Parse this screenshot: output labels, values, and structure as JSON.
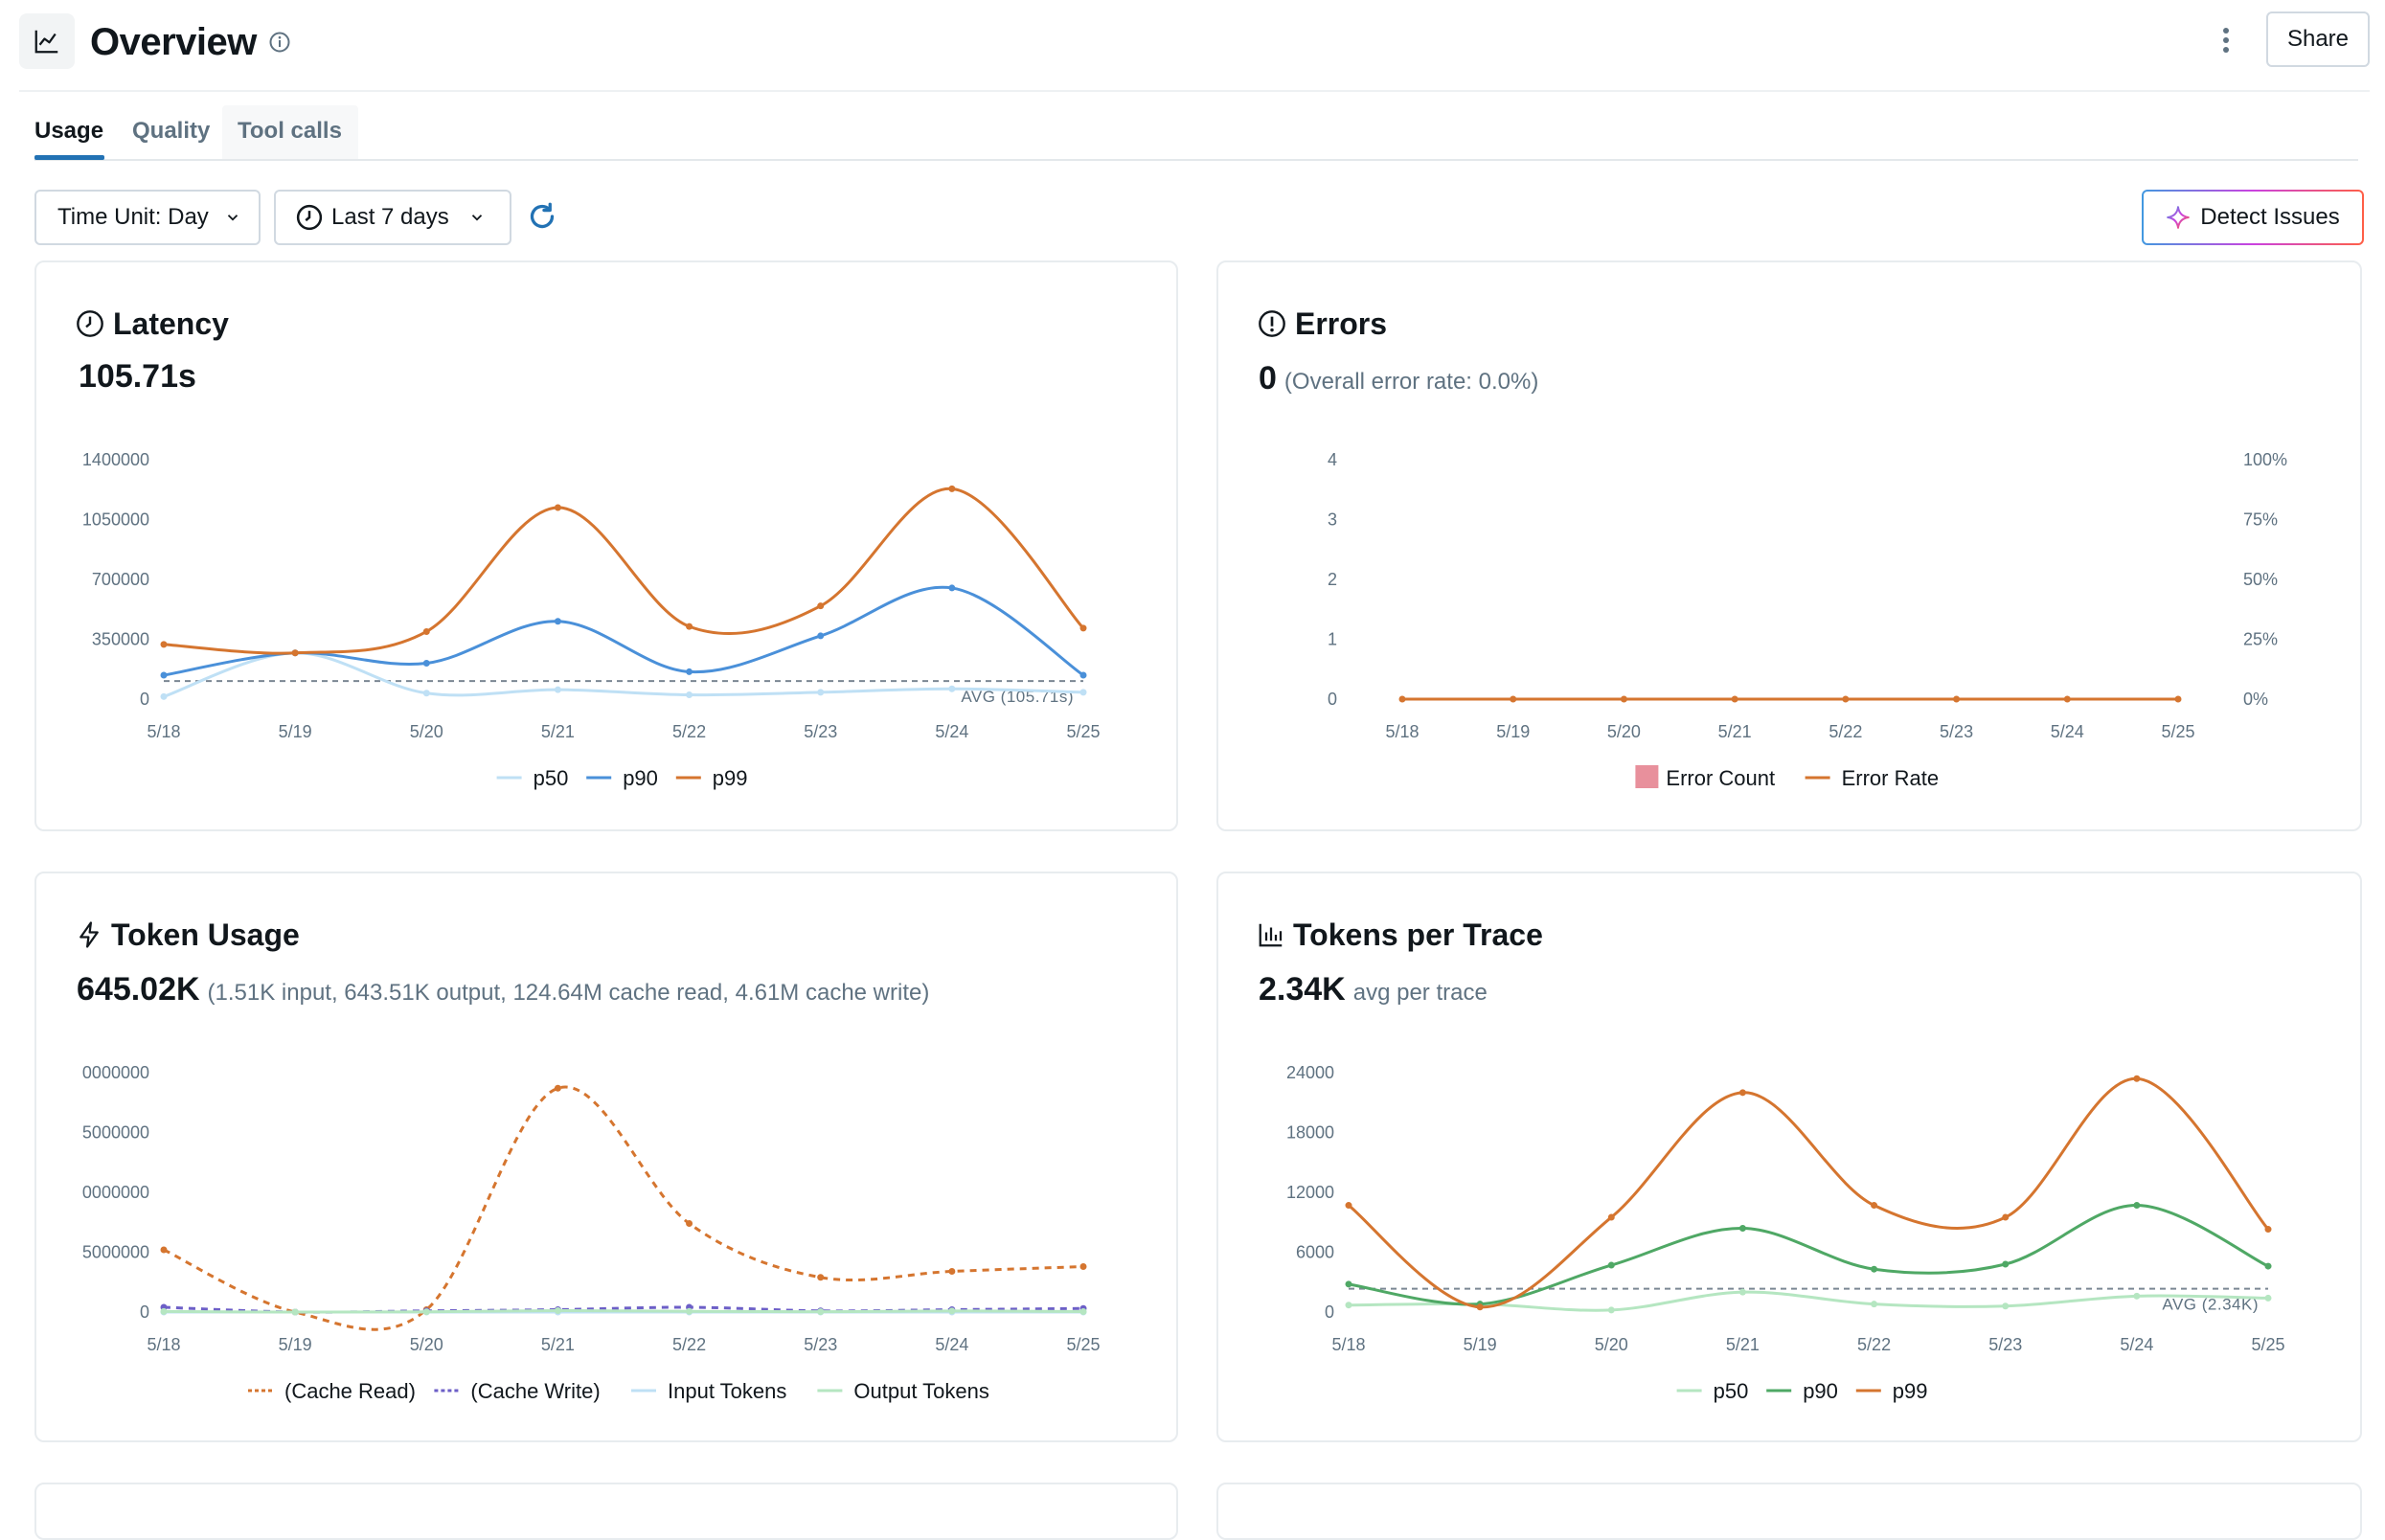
{
  "header": {
    "title": "Overview",
    "share_label": "Share"
  },
  "tabs": [
    {
      "label": "Usage",
      "active": true
    },
    {
      "label": "Quality",
      "active": false
    },
    {
      "label": "Tool calls",
      "active": false
    }
  ],
  "toolbar": {
    "time_unit_label": "Time Unit: Day",
    "range_label": "Last 7 days",
    "detect_label": "Detect Issues"
  },
  "colors": {
    "accent": "#2272b4",
    "p50": "#bfe0f5",
    "p90": "#4a90d9",
    "p99": "#d5752f",
    "tp_p50": "#b5e6c1",
    "tp_p90": "#4fa865",
    "tp_p99": "#d5752f",
    "cache_write": "#6c5fc7",
    "error_count": "#e8909c"
  },
  "cards": {
    "latency": {
      "title": "Latency",
      "value": "105.71s",
      "avg_label": "AVG (105.71s)"
    },
    "errors": {
      "title": "Errors",
      "value": "0",
      "detail": "(Overall error rate: 0.0%)"
    },
    "tokens": {
      "title": "Token Usage",
      "value": "645.02K",
      "detail": "(1.51K input, 643.51K output, 124.64M cache read, 4.61M cache write)"
    },
    "per_trace": {
      "title": "Tokens per Trace",
      "value": "2.34K",
      "detail": "avg per trace",
      "avg_label": "AVG (2.34K)"
    }
  },
  "chart_data": [
    {
      "id": "latency",
      "type": "line",
      "x": [
        "5/18",
        "5/19",
        "5/20",
        "5/21",
        "5/22",
        "5/23",
        "5/24",
        "5/25"
      ],
      "y_ticks": [
        "1400000",
        "1050000",
        "700000",
        "350000",
        "0"
      ],
      "ylim": [
        0,
        1400000
      ],
      "avg": 105710,
      "series": [
        {
          "name": "p50",
          "values": [
            15000,
            270000,
            35000,
            55000,
            25000,
            40000,
            60000,
            40000
          ]
        },
        {
          "name": "p90",
          "values": [
            140000,
            270000,
            210000,
            455000,
            160000,
            370000,
            650000,
            140000
          ]
        },
        {
          "name": "p99",
          "values": [
            320000,
            270000,
            395000,
            1120000,
            425000,
            545000,
            1230000,
            415000
          ]
        }
      ]
    },
    {
      "id": "errors",
      "type": "line",
      "x": [
        "5/18",
        "5/19",
        "5/20",
        "5/21",
        "5/22",
        "5/23",
        "5/24",
        "5/25"
      ],
      "y_ticks": [
        "4",
        "3",
        "2",
        "1",
        "0"
      ],
      "y2_ticks": [
        "100%",
        "75%",
        "50%",
        "25%",
        "0%"
      ],
      "ylim": [
        0,
        4
      ],
      "series": [
        {
          "name": "Error Count",
          "type": "bar",
          "values": [
            0,
            0,
            0,
            0,
            0,
            0,
            0,
            0
          ]
        },
        {
          "name": "Error Rate",
          "values": [
            0,
            0,
            0,
            0,
            0,
            0,
            0,
            0
          ]
        }
      ]
    },
    {
      "id": "tokens",
      "type": "line",
      "x": [
        "5/18",
        "5/19",
        "5/20",
        "5/21",
        "5/22",
        "5/23",
        "5/24",
        "5/25"
      ],
      "y_ticks": [
        "0000000",
        "5000000",
        "0000000",
        "5000000",
        "0"
      ],
      "ylim": [
        0,
        20000000
      ],
      "series": [
        {
          "name": "(Cache Read)",
          "dashed": true,
          "values": [
            5200000,
            0,
            200000,
            18700000,
            7400000,
            2900000,
            3400000,
            3800000
          ]
        },
        {
          "name": "(Cache Write)",
          "dashed": true,
          "values": [
            400000,
            0,
            100000,
            200000,
            400000,
            100000,
            200000,
            300000
          ]
        },
        {
          "name": "Input Tokens",
          "values": [
            0,
            0,
            0,
            0,
            0,
            0,
            0,
            0
          ]
        },
        {
          "name": "Output Tokens",
          "values": [
            50000,
            0,
            20000,
            120000,
            60000,
            30000,
            90000,
            40000
          ]
        }
      ]
    },
    {
      "id": "per_trace",
      "type": "line",
      "x": [
        "5/18",
        "5/19",
        "5/20",
        "5/21",
        "5/22",
        "5/23",
        "5/24",
        "5/25"
      ],
      "y_ticks": [
        "24000",
        "18000",
        "12000",
        "6000",
        "0"
      ],
      "ylim": [
        0,
        24000
      ],
      "avg": 2340,
      "series": [
        {
          "name": "p50",
          "values": [
            700,
            800,
            200,
            2000,
            800,
            600,
            1600,
            1400
          ]
        },
        {
          "name": "p90",
          "values": [
            2800,
            800,
            4700,
            8400,
            4300,
            4800,
            10700,
            4600
          ]
        },
        {
          "name": "p99",
          "values": [
            10700,
            500,
            9500,
            22000,
            10700,
            9500,
            23400,
            8300
          ]
        }
      ]
    }
  ]
}
